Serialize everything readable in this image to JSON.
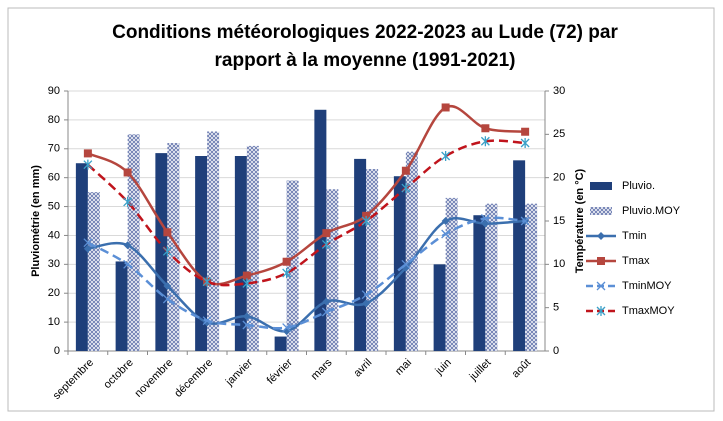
{
  "chart_data": {
    "type": "combo",
    "title_lines": [
      "Conditions météorologiques 2022-2023 au Lude (72) par",
      "rapport à la moyenne (1991-2021)"
    ],
    "y_label": "Pluviométrie (en mm)",
    "y2_label": "Température (en °C)",
    "categories": [
      "septembre",
      "octobre",
      "novembre",
      "décembre",
      "janvier",
      "février",
      "mars",
      "avril",
      "mai",
      "juin",
      "juillet",
      "août"
    ],
    "ylim": [
      0,
      90
    ],
    "yticks": [
      0,
      10,
      20,
      30,
      40,
      50,
      60,
      70,
      80,
      90
    ],
    "y2lim": [
      0,
      30
    ],
    "y2ticks": [
      0,
      5,
      10,
      15,
      20,
      25,
      30
    ],
    "grid": true,
    "legend": "right",
    "series": [
      {
        "name": "Pluvio.",
        "type": "bar",
        "color": "#1f3f7a",
        "values": [
          65,
          31,
          68.5,
          67.5,
          67.5,
          5,
          83.5,
          66.5,
          60.5,
          30,
          47,
          66
        ]
      },
      {
        "name": "Pluvio.MOY",
        "type": "bar",
        "pattern": "crosshatch",
        "color": "#6f7fb3",
        "values": [
          55,
          75,
          72,
          76,
          71,
          59,
          56,
          63,
          69,
          53,
          51,
          51
        ]
      },
      {
        "name": "Tmin",
        "type": "line",
        "axis": "y2",
        "color": "#3b6fae",
        "marker": "diamond",
        "dashed": false,
        "values": [
          11.8,
          12.2,
          7.5,
          3.3,
          4.0,
          2.3,
          5.7,
          5.5,
          9.6,
          15.0,
          14.7,
          15.0
        ]
      },
      {
        "name": "Tmax",
        "type": "line",
        "axis": "y2",
        "color": "#b5463e",
        "marker": "square",
        "dashed": false,
        "values": [
          22.8,
          20.6,
          13.7,
          8.0,
          8.7,
          10.3,
          13.6,
          15.6,
          20.8,
          28.1,
          25.7,
          25.3
        ]
      },
      {
        "name": "TminMOY",
        "type": "line",
        "axis": "y2",
        "color": "#5b8fd6",
        "marker": "x",
        "dashed": true,
        "values": [
          12.5,
          10.0,
          6.0,
          3.5,
          3.0,
          2.7,
          4.5,
          6.5,
          10.0,
          13.5,
          15.3,
          15.0
        ]
      },
      {
        "name": "TmaxMOY",
        "type": "line",
        "axis": "y2",
        "color": "#c0141c",
        "marker": "star",
        "dashed": true,
        "values": [
          21.5,
          17.2,
          11.5,
          8.0,
          7.8,
          9.0,
          12.3,
          15.0,
          18.8,
          22.5,
          24.2,
          24.0
        ]
      }
    ]
  }
}
